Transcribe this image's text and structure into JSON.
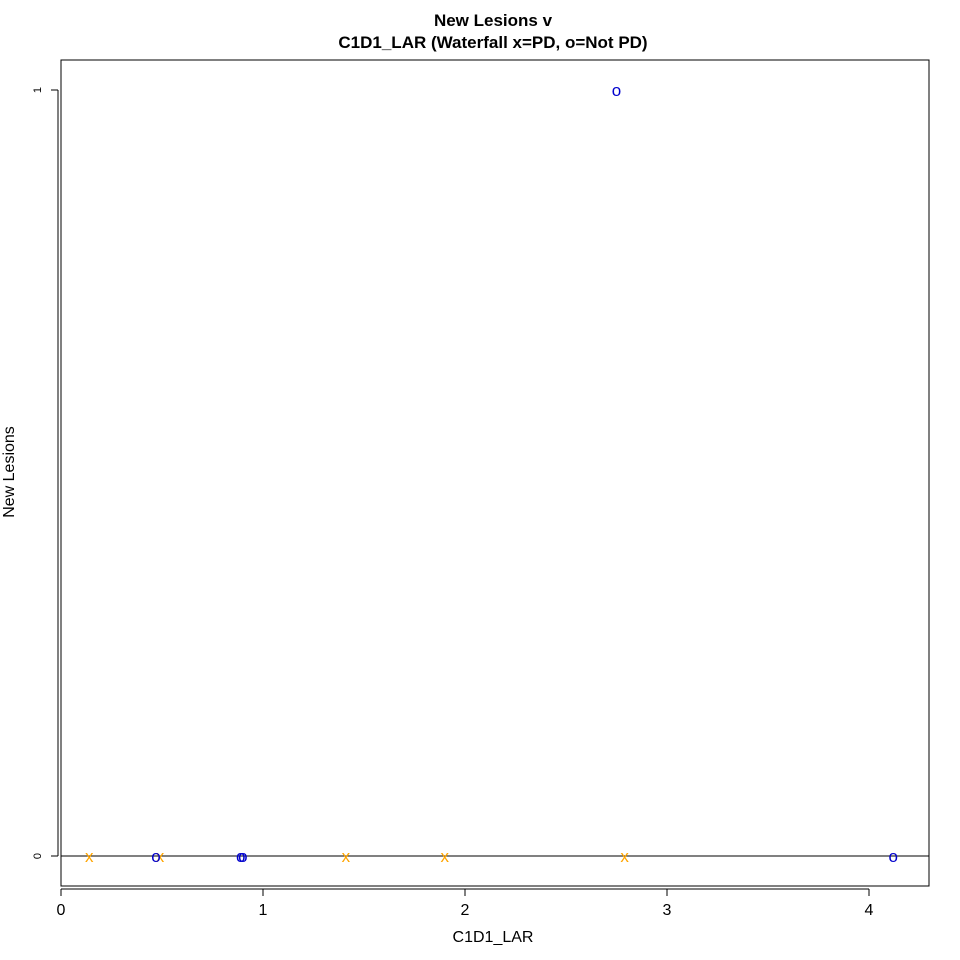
{
  "chart_data": {
    "type": "scatter",
    "title": "New Lesions v",
    "subtitle": "C1D1_LAR (Waterfall x=PD, o=Not PD)",
    "xlabel": "C1D1_LAR",
    "ylabel": "New Lesions",
    "xlim": [
      0,
      4.3
    ],
    "ylim": [
      -0.04,
      1.04
    ],
    "xticks": [
      0,
      1,
      2,
      3,
      4
    ],
    "yticks": [
      0,
      1
    ],
    "reference_line_y": 0,
    "grid": false,
    "legend": "none",
    "series": [
      {
        "symbol": "x",
        "color": "#ffa500",
        "points": [
          {
            "x": 0.14,
            "y": 0
          },
          {
            "x": 0.49,
            "y": 0
          },
          {
            "x": 1.41,
            "y": 0
          },
          {
            "x": 1.9,
            "y": 0
          },
          {
            "x": 2.79,
            "y": 0
          }
        ]
      },
      {
        "symbol": "o",
        "color": "#0000cd",
        "points": [
          {
            "x": 0.47,
            "y": 0
          },
          {
            "x": 0.89,
            "y": 0
          },
          {
            "x": 0.9,
            "y": 0
          },
          {
            "x": 2.75,
            "y": 1
          },
          {
            "x": 4.12,
            "y": 0
          }
        ]
      }
    ]
  }
}
